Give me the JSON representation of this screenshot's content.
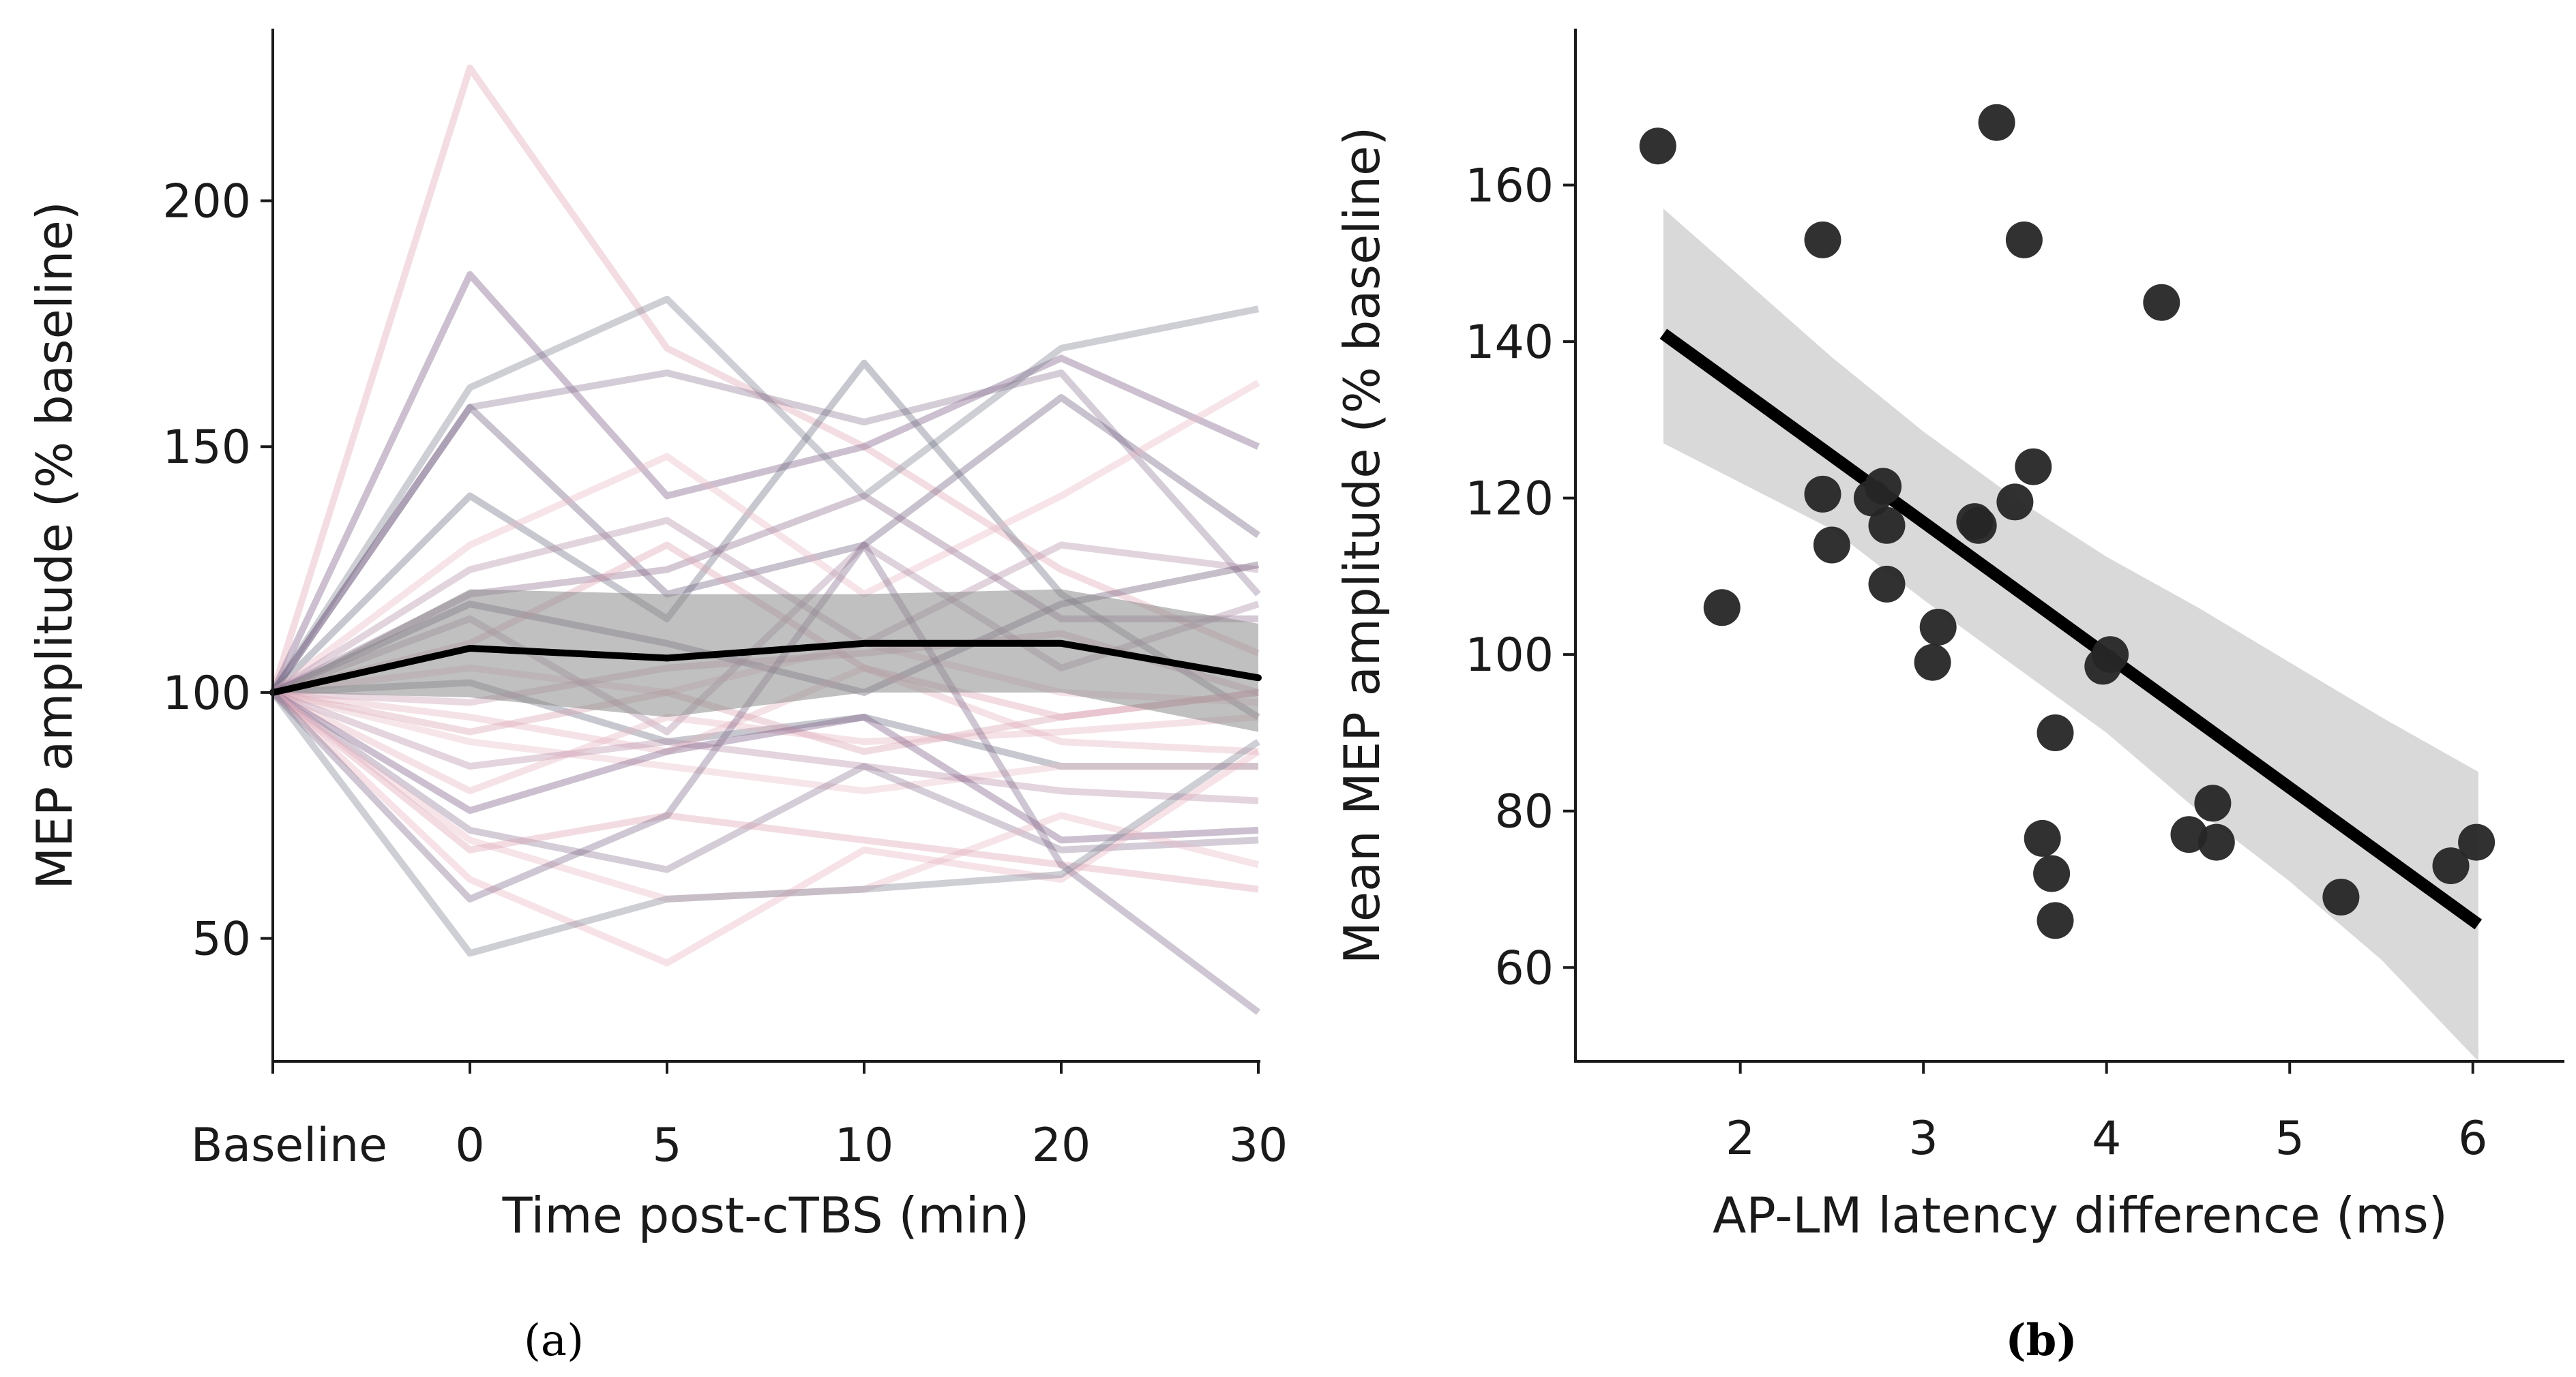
{
  "chart_data": [
    {
      "panel": "(a)",
      "type": "line",
      "xlabel": "Time post-cTBS (min)",
      "ylabel": "MEP amplitude (% baseline)",
      "categories": [
        "Baseline",
        "0",
        "5",
        "10",
        "20",
        "30"
      ],
      "ylim": [
        25,
        235
      ],
      "yticks": [
        50,
        100,
        150,
        200
      ],
      "grid": false,
      "mean": {
        "values": [
          100,
          109,
          107,
          110,
          110,
          103
        ],
        "ci_upper": [
          100,
          121,
          120,
          120,
          121,
          114
        ],
        "ci_lower": [
          100,
          99,
          95,
          100,
          100,
          92
        ],
        "color": "#000000"
      },
      "subjects": [
        {
          "values": [
            100,
            227,
            170,
            150,
            125,
            108
          ],
          "color": "#e0a6b4"
        },
        {
          "values": [
            100,
            185,
            140,
            150,
            168,
            150
          ],
          "color": "#7a5a84"
        },
        {
          "values": [
            100,
            162,
            180,
            140,
            170,
            178
          ],
          "color": "#7f8091"
        },
        {
          "values": [
            100,
            158,
            165,
            155,
            165,
            120
          ],
          "color": "#8f7895"
        },
        {
          "values": [
            100,
            158,
            120,
            130,
            160,
            132
          ],
          "color": "#6f5d7f"
        },
        {
          "values": [
            100,
            140,
            115,
            167,
            120,
            95
          ],
          "color": "#6d6e82"
        },
        {
          "values": [
            100,
            130,
            148,
            120,
            140,
            163
          ],
          "color": "#e8b9c4"
        },
        {
          "values": [
            100,
            125,
            135,
            110,
            130,
            125
          ],
          "color": "#b48fa6"
        },
        {
          "values": [
            100,
            120,
            125,
            140,
            115,
            115
          ],
          "color": "#8d6f8f"
        },
        {
          "values": [
            100,
            118,
            110,
            100,
            118,
            126
          ],
          "color": "#6a5673"
        },
        {
          "values": [
            100,
            115,
            92,
            130,
            105,
            118
          ],
          "color": "#a98aa2"
        },
        {
          "values": [
            100,
            110,
            130,
            105,
            95,
            100
          ],
          "color": "#dca3b3"
        },
        {
          "values": [
            100,
            105,
            100,
            110,
            100,
            98
          ],
          "color": "#e8b9c4"
        },
        {
          "values": [
            100,
            102,
            90,
            95,
            85,
            85
          ],
          "color": "#6d6e82"
        },
        {
          "values": [
            100,
            98,
            105,
            108,
            112,
            100
          ],
          "color": "#c99bb0"
        },
        {
          "values": [
            100,
            95,
            88,
            105,
            90,
            88
          ],
          "color": "#e5b3c0"
        },
        {
          "values": [
            100,
            92,
            100,
            88,
            95,
            100
          ],
          "color": "#d7a0b1"
        },
        {
          "values": [
            100,
            90,
            85,
            80,
            85,
            85
          ],
          "color": "#e8bcc6"
        },
        {
          "values": [
            100,
            85,
            90,
            85,
            80,
            78
          ],
          "color": "#b68fa8"
        },
        {
          "values": [
            100,
            80,
            95,
            90,
            92,
            95
          ],
          "color": "#e6b3bf"
        },
        {
          "values": [
            100,
            76,
            88,
            95,
            70,
            72
          ],
          "color": "#7a5a84"
        },
        {
          "values": [
            100,
            72,
            64,
            85,
            68,
            70
          ],
          "color": "#8f7895"
        },
        {
          "values": [
            100,
            70,
            58,
            60,
            75,
            65
          ],
          "color": "#e8b9c4"
        },
        {
          "values": [
            100,
            68,
            75,
            70,
            65,
            60
          ],
          "color": "#dca3b3"
        },
        {
          "values": [
            100,
            62,
            45,
            68,
            62,
            88
          ],
          "color": "#e7b4c0"
        },
        {
          "values": [
            100,
            58,
            75,
            130,
            65,
            35
          ],
          "color": "#7e6a8a"
        },
        {
          "values": [
            100,
            47,
            58,
            60,
            63,
            90
          ],
          "color": "#7f8091"
        }
      ]
    },
    {
      "panel": "(b)",
      "type": "scatter",
      "xlabel": "AP-LM latency difference (ms)",
      "ylabel": "Mean MEP amplitude (% baseline)",
      "xlim": [
        1.1,
        6.5
      ],
      "ylim": [
        48,
        180
      ],
      "xticks": [
        2,
        3,
        4,
        5,
        6
      ],
      "yticks": [
        60,
        80,
        100,
        120,
        140,
        160
      ],
      "grid": false,
      "points": [
        {
          "x": 1.55,
          "y": 165
        },
        {
          "x": 1.9,
          "y": 106
        },
        {
          "x": 2.45,
          "y": 153
        },
        {
          "x": 2.45,
          "y": 120.5
        },
        {
          "x": 2.5,
          "y": 114
        },
        {
          "x": 2.72,
          "y": 120
        },
        {
          "x": 2.78,
          "y": 121.5
        },
        {
          "x": 2.8,
          "y": 116.5
        },
        {
          "x": 2.8,
          "y": 109
        },
        {
          "x": 3.08,
          "y": 103.5
        },
        {
          "x": 3.05,
          "y": 99
        },
        {
          "x": 3.28,
          "y": 117
        },
        {
          "x": 3.3,
          "y": 116.5
        },
        {
          "x": 3.4,
          "y": 168
        },
        {
          "x": 3.5,
          "y": 119.5
        },
        {
          "x": 3.55,
          "y": 153
        },
        {
          "x": 3.6,
          "y": 124
        },
        {
          "x": 3.65,
          "y": 76.5
        },
        {
          "x": 3.7,
          "y": 72
        },
        {
          "x": 3.72,
          "y": 66
        },
        {
          "x": 3.72,
          "y": 90
        },
        {
          "x": 3.98,
          "y": 98.5
        },
        {
          "x": 4.02,
          "y": 100
        },
        {
          "x": 4.3,
          "y": 145
        },
        {
          "x": 4.45,
          "y": 77
        },
        {
          "x": 4.58,
          "y": 81
        },
        {
          "x": 4.6,
          "y": 76
        },
        {
          "x": 5.28,
          "y": 69
        },
        {
          "x": 5.88,
          "y": 73
        },
        {
          "x": 6.02,
          "y": 76
        }
      ],
      "fit": {
        "x": [
          1.58,
          6.03
        ],
        "y": [
          141,
          65.5
        ]
      },
      "band": {
        "x": [
          1.58,
          2.5,
          3.0,
          3.5,
          4.0,
          4.5,
          5.0,
          5.5,
          6.03
        ],
        "upper": [
          157,
          138,
          128.5,
          120,
          112.5,
          106,
          99,
          92,
          85
        ],
        "lower": [
          127,
          116,
          107,
          98.5,
          90,
          80,
          71,
          61,
          48
        ]
      },
      "marker_color": "#262626",
      "line_color": "#000000",
      "band_color": "#d9d9d9"
    }
  ]
}
